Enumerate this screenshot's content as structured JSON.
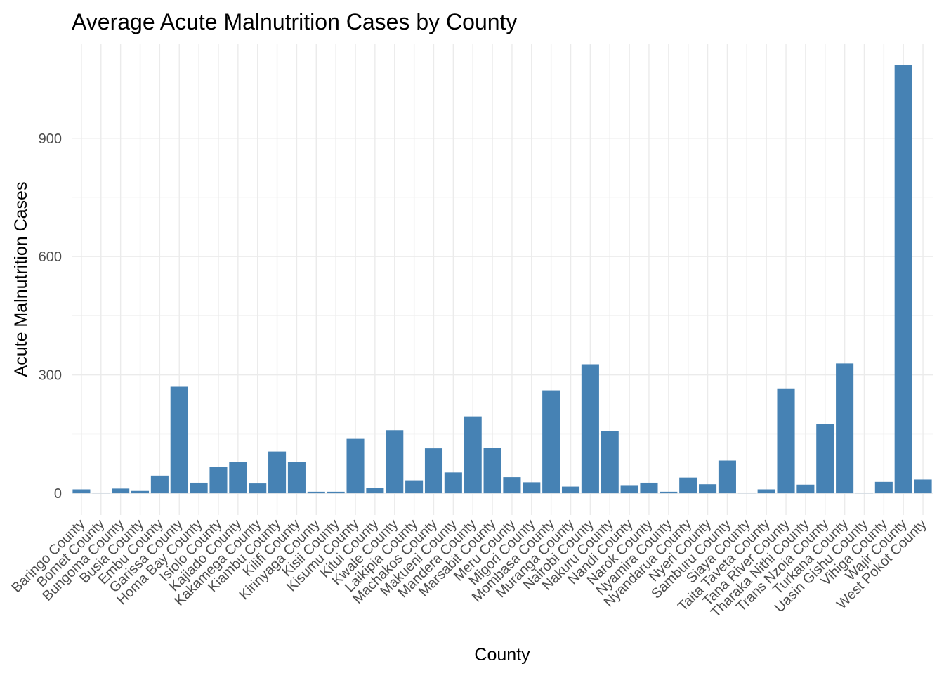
{
  "chart_data": {
    "type": "bar",
    "title": "Average Acute Malnutrition Cases by County",
    "xlabel": "County",
    "ylabel": "Acute Malnutrition Cases",
    "ylim": [
      -55,
      1140
    ],
    "yticks": [
      0,
      300,
      600,
      900
    ],
    "grid": true,
    "legend": "none",
    "bar_color": "#4682B4",
    "categories": [
      "Baringo County",
      "Bomet County",
      "Bungoma County",
      "Busia County",
      "Embu County",
      "Garissa County",
      "Homa Bay County",
      "Isiolo County",
      "Kajiado County",
      "Kakamega County",
      "Kiambu County",
      "Kilifi County",
      "Kirinyaga County",
      "Kisii County",
      "Kisumu County",
      "Kitui County",
      "Kwale County",
      "Laikipia County",
      "Machakos County",
      "Makueni County",
      "Mandera County",
      "Marsabit County",
      "Meru County",
      "Migori County",
      "Mombasa County",
      "Muranga County",
      "Nairobi County",
      "Nakuru County",
      "Nandi County",
      "Narok County",
      "Nyamira County",
      "Nyandarua County",
      "Nyeri County",
      "Samburu County",
      "Siaya County",
      "Taita Taveta County",
      "Tana River County",
      "Tharaka Nithi County",
      "Trans Nzoia County",
      "Turkana County",
      "Uasin Gishu County",
      "Vihiga County",
      "Wajir County",
      "West Pokot County"
    ],
    "values": [
      10,
      2,
      12,
      6,
      45,
      270,
      27,
      67,
      79,
      25,
      106,
      79,
      4,
      4,
      138,
      13,
      160,
      33,
      114,
      53,
      195,
      115,
      41,
      28,
      261,
      17,
      327,
      158,
      19,
      27,
      4,
      40,
      23,
      83,
      2,
      10,
      266,
      22,
      176,
      329,
      2,
      29,
      1085,
      35
    ]
  }
}
